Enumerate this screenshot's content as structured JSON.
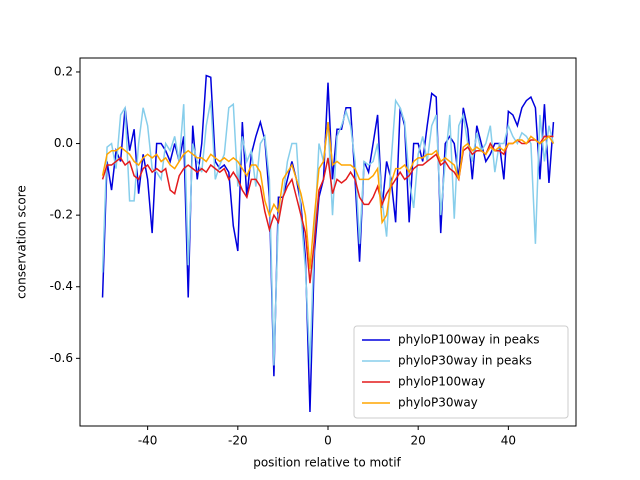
{
  "chart_data": {
    "type": "line",
    "xlabel": "position relative to motif",
    "ylabel": "conservation score",
    "x": [
      -50,
      -49,
      -48,
      -47,
      -46,
      -45,
      -44,
      -43,
      -42,
      -41,
      -40,
      -39,
      -38,
      -37,
      -36,
      -35,
      -34,
      -33,
      -32,
      -31,
      -30,
      -29,
      -28,
      -27,
      -26,
      -25,
      -24,
      -23,
      -22,
      -21,
      -20,
      -19,
      -18,
      -17,
      -16,
      -15,
      -14,
      -13,
      -12,
      -11,
      -10,
      -9,
      -8,
      -7,
      -6,
      -5,
      -4,
      -3,
      -2,
      -1,
      0,
      1,
      2,
      3,
      4,
      5,
      6,
      7,
      8,
      9,
      10,
      11,
      12,
      13,
      14,
      15,
      16,
      17,
      18,
      19,
      20,
      21,
      22,
      23,
      24,
      25,
      26,
      27,
      28,
      29,
      30,
      31,
      32,
      33,
      34,
      35,
      36,
      37,
      38,
      39,
      40,
      41,
      42,
      43,
      44,
      45,
      46,
      47,
      48,
      49,
      50
    ],
    "series": [
      {
        "name": "phyloP100way in peaks",
        "color": "#0000dd",
        "values": [
          -0.43,
          -0.05,
          -0.13,
          -0.02,
          -0.05,
          0.1,
          -0.02,
          0.04,
          -0.14,
          -0.03,
          -0.1,
          -0.25,
          0.0,
          0.0,
          -0.02,
          -0.05,
          0.0,
          -0.05,
          0.02,
          -0.43,
          0.05,
          -0.1,
          0.0,
          0.19,
          0.185,
          -0.05,
          -0.07,
          -0.06,
          -0.08,
          -0.23,
          -0.3,
          0.06,
          -0.15,
          -0.03,
          0.02,
          0.06,
          0.01,
          -0.15,
          -0.65,
          -0.15,
          -0.15,
          -0.1,
          -0.05,
          -0.1,
          -0.17,
          -0.32,
          -0.75,
          -0.3,
          -0.15,
          -0.1,
          0.17,
          -0.1,
          0.04,
          0.04,
          0.1,
          0.1,
          -0.1,
          -0.33,
          -0.05,
          -0.08,
          0.0,
          0.08,
          -0.18,
          -0.05,
          -0.1,
          -0.22,
          0.1,
          0.05,
          -0.22,
          0.0,
          0.0,
          -0.05,
          0.05,
          0.14,
          0.13,
          -0.25,
          0.0,
          0.02,
          0.0,
          -0.1,
          0.1,
          0.04,
          -0.1,
          0.05,
          0.0,
          -0.05,
          -0.03,
          0.0,
          0.0,
          -0.1,
          0.09,
          0.08,
          0.05,
          0.1,
          0.12,
          0.13,
          0.1,
          -0.1,
          0.11,
          -0.11,
          0.06
        ]
      },
      {
        "name": "phyloP30way in peaks",
        "color": "#87ceeb",
        "values": [
          -0.36,
          -0.01,
          0.0,
          -0.07,
          0.08,
          0.1,
          -0.16,
          -0.16,
          0.0,
          0.1,
          0.05,
          -0.07,
          -0.08,
          -0.1,
          0.0,
          -0.02,
          0.02,
          -0.05,
          0.11,
          -0.34,
          0.0,
          -0.05,
          -0.08,
          0.05,
          0.12,
          -0.1,
          -0.06,
          -0.03,
          0.1,
          0.11,
          -0.12,
          0.02,
          -0.05,
          -0.02,
          -0.12,
          0.0,
          0.02,
          -0.1,
          -0.62,
          -0.2,
          -0.15,
          -0.05,
          0.0,
          0.0,
          -0.2,
          -0.35,
          -0.62,
          -0.25,
          0.0,
          -0.05,
          0.06,
          -0.2,
          0.02,
          0.05,
          0.09,
          0.05,
          -0.05,
          -0.28,
          -0.05,
          -0.06,
          -0.05,
          0.0,
          -0.16,
          -0.26,
          -0.05,
          0.12,
          0.1,
          0.06,
          -0.1,
          -0.18,
          -0.03,
          0.02,
          -0.05,
          0.05,
          0.08,
          -0.2,
          -0.05,
          0.08,
          -0.21,
          0.05,
          0.08,
          0.0,
          -0.05,
          0.03,
          -0.02,
          0.0,
          0.05,
          -0.08,
          0.0,
          0.0,
          0.05,
          0.02,
          0.0,
          0.03,
          0.02,
          0.0,
          -0.28,
          0.08,
          -0.05,
          0.05,
          0.0
        ]
      },
      {
        "name": "phyloP100way",
        "color": "#e31a1c",
        "values": [
          -0.1,
          -0.06,
          -0.06,
          -0.05,
          -0.04,
          -0.06,
          -0.05,
          -0.09,
          -0.1,
          -0.07,
          -0.06,
          -0.08,
          -0.07,
          -0.08,
          -0.07,
          -0.13,
          -0.14,
          -0.09,
          -0.07,
          -0.06,
          -0.07,
          -0.08,
          -0.07,
          -0.08,
          -0.06,
          -0.07,
          -0.08,
          -0.07,
          -0.1,
          -0.08,
          -0.1,
          -0.13,
          -0.15,
          -0.1,
          -0.1,
          -0.12,
          -0.19,
          -0.24,
          -0.2,
          -0.22,
          -0.15,
          -0.12,
          -0.1,
          -0.15,
          -0.2,
          -0.25,
          -0.39,
          -0.27,
          -0.13,
          -0.1,
          -0.04,
          -0.14,
          -0.1,
          -0.11,
          -0.1,
          -0.08,
          -0.1,
          -0.15,
          -0.17,
          -0.17,
          -0.15,
          -0.12,
          -0.17,
          -0.14,
          -0.12,
          -0.1,
          -0.08,
          -0.1,
          -0.09,
          -0.07,
          -0.06,
          -0.06,
          -0.05,
          -0.04,
          -0.03,
          -0.06,
          -0.05,
          -0.07,
          -0.08,
          -0.1,
          -0.02,
          -0.01,
          -0.03,
          -0.02,
          -0.02,
          -0.03,
          0.0,
          -0.02,
          -0.02,
          -0.03,
          0.0,
          0.0,
          0.01,
          0.0,
          0.0,
          0.01,
          0.01,
          0.0,
          0.02,
          0.02,
          0.02
        ]
      },
      {
        "name": "phyloP30way",
        "color": "#ffa500",
        "values": [
          -0.09,
          -0.03,
          -0.02,
          -0.02,
          -0.01,
          -0.02,
          -0.03,
          -0.05,
          -0.06,
          -0.04,
          -0.03,
          -0.04,
          -0.03,
          -0.05,
          -0.04,
          -0.06,
          -0.07,
          -0.05,
          -0.03,
          -0.02,
          -0.03,
          -0.04,
          -0.04,
          -0.05,
          -0.03,
          -0.04,
          -0.05,
          -0.04,
          -0.05,
          -0.04,
          -0.05,
          -0.07,
          -0.09,
          -0.06,
          -0.06,
          -0.08,
          -0.16,
          -0.2,
          -0.17,
          -0.19,
          -0.1,
          -0.08,
          -0.06,
          -0.1,
          -0.14,
          -0.2,
          -0.35,
          -0.2,
          -0.07,
          -0.05,
          0.06,
          -0.06,
          -0.05,
          -0.06,
          -0.06,
          -0.06,
          -0.07,
          -0.1,
          -0.1,
          -0.1,
          -0.09,
          -0.07,
          -0.22,
          -0.2,
          -0.11,
          -0.07,
          -0.07,
          -0.06,
          -0.08,
          -0.05,
          -0.04,
          -0.04,
          -0.03,
          -0.03,
          -0.02,
          -0.05,
          -0.04,
          -0.05,
          -0.06,
          -0.1,
          -0.01,
          0.0,
          -0.02,
          -0.01,
          -0.02,
          -0.03,
          -0.01,
          -0.02,
          -0.01,
          -0.02,
          0.0,
          0.0,
          0.01,
          0.01,
          0.0,
          0.02,
          0.01,
          0.0,
          0.01,
          0.02,
          0.0
        ]
      }
    ],
    "xlim": [
      -55,
      55
    ],
    "xticks": [
      -40,
      -20,
      0,
      20,
      40
    ],
    "ylim": [
      -0.789,
      0.239
    ],
    "yticks": [
      0.2,
      {
        "value": 0.0,
        "label": "0.0"
      },
      -0.2,
      -0.4,
      -0.6
    ],
    "legend": "lower right"
  }
}
